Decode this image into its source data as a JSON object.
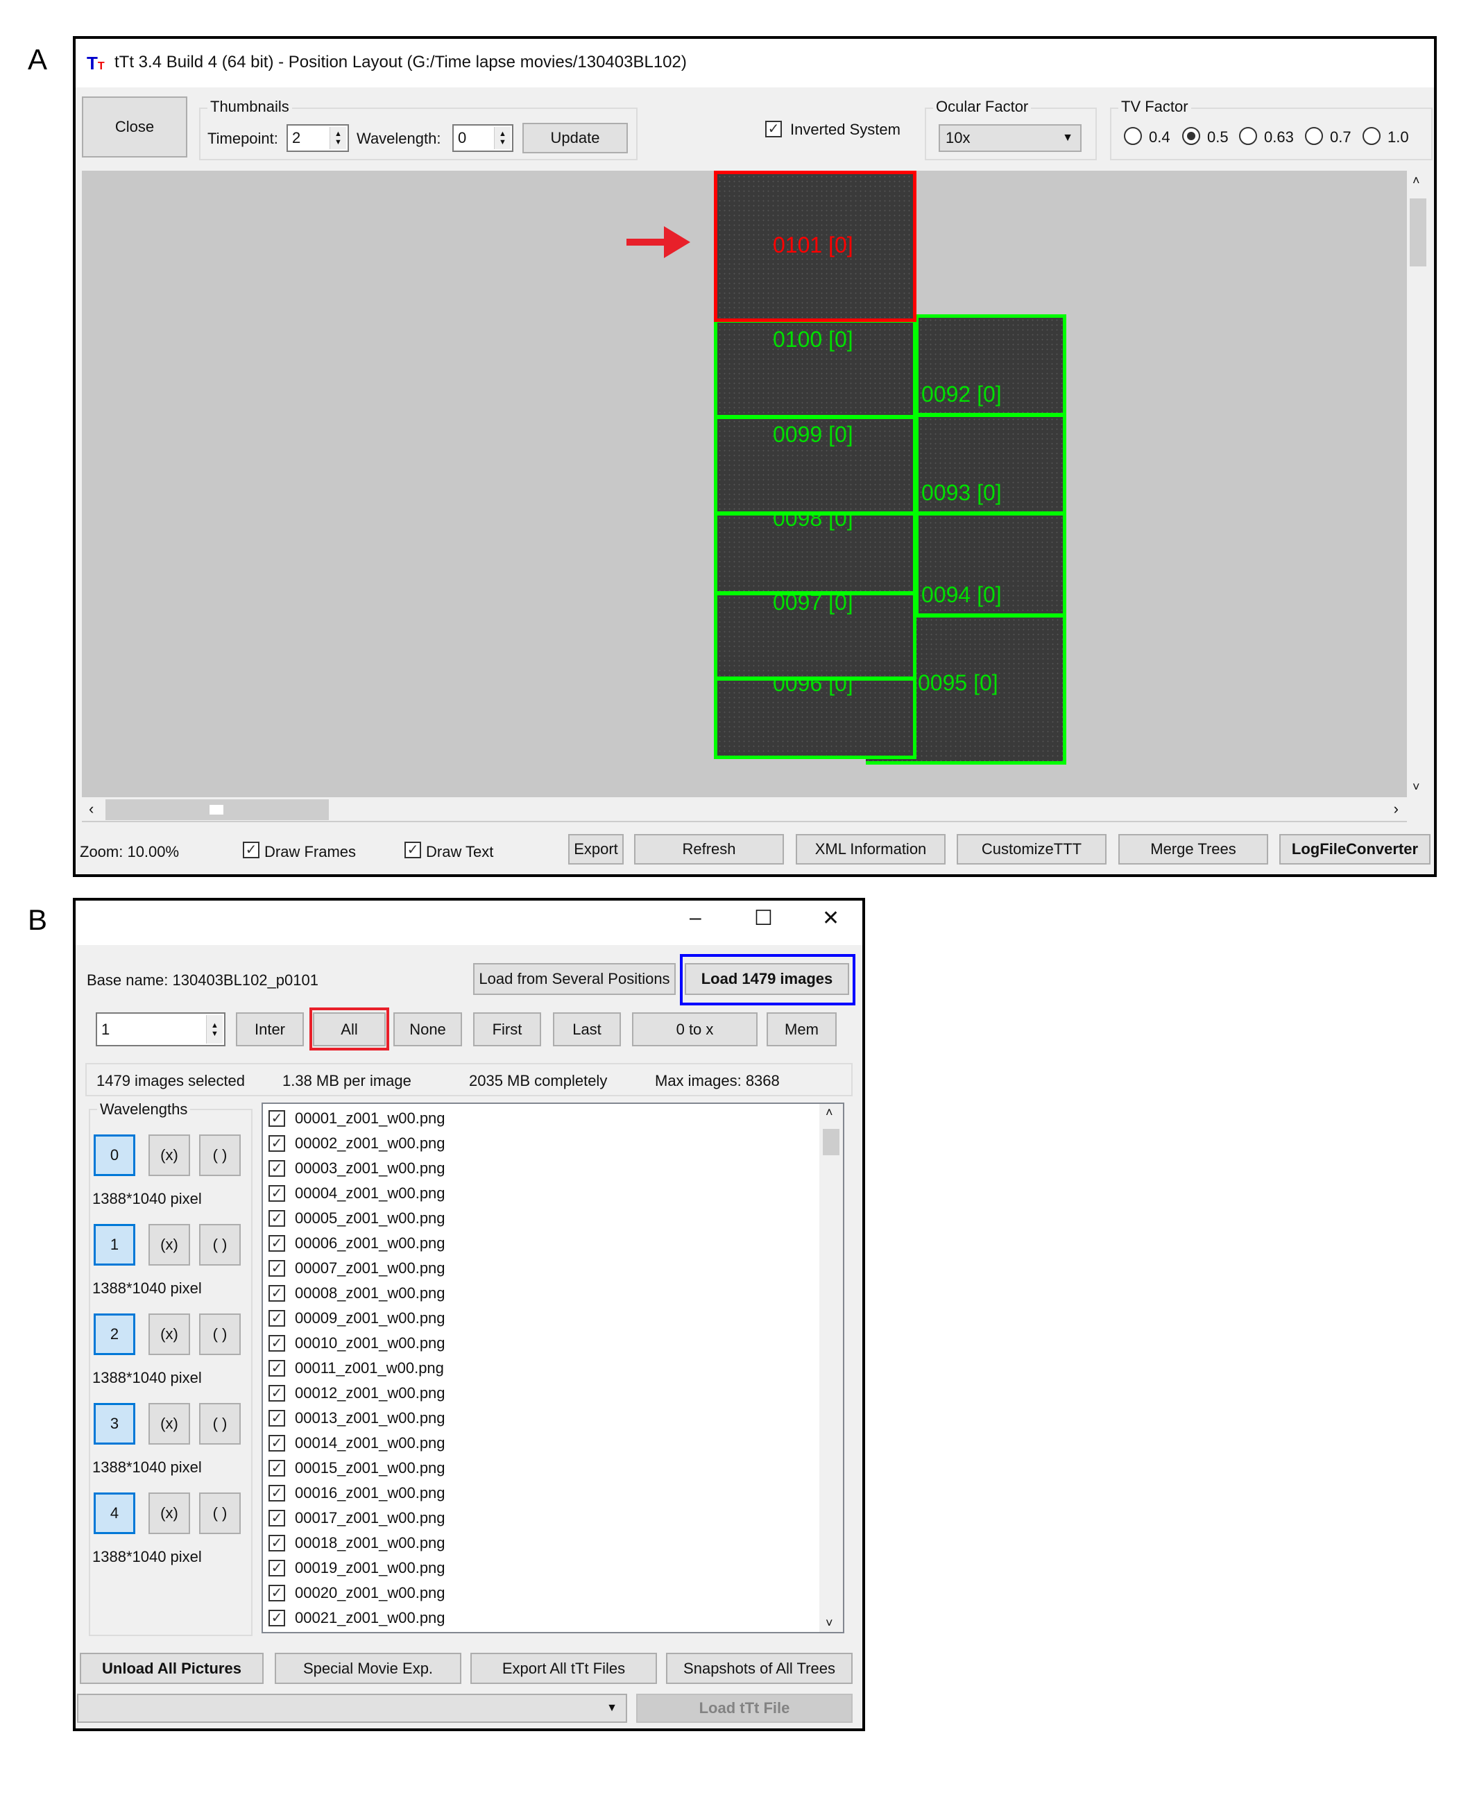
{
  "panels": {
    "a": "A",
    "b": "B"
  },
  "position_layout": {
    "title": "tTt 3.4 Build 4 (64 bit) - Position Layout (G:/Time lapse movies/130403BL102)",
    "close_label": "Close",
    "thumbnails": {
      "title": "Thumbnails",
      "timepoint_label": "Timepoint:",
      "timepoint_value": "2",
      "wavelength_label": "Wavelength:",
      "wavelength_value": "0",
      "update_label": "Update"
    },
    "inverted_system": {
      "label": "Inverted System",
      "checked": true
    },
    "ocular_factor": {
      "title": "Ocular Factor",
      "value": "10x"
    },
    "tv_factor": {
      "title": "TV Factor",
      "options": [
        "0.4",
        "0.5",
        "0.63",
        "0.7",
        "1.0"
      ],
      "selected": "0.5"
    },
    "tiles": [
      {
        "label": "0101 [0]",
        "color": "#ff0000",
        "selected": true
      },
      {
        "label": "0100 [0]",
        "color": "#00e000"
      },
      {
        "label": "0099 [0]",
        "color": "#00e000"
      },
      {
        "label": "0098 [0]",
        "color": "#00e000"
      },
      {
        "label": "0097 [0]",
        "color": "#00e000"
      },
      {
        "label": "0096 [0]",
        "color": "#00e000"
      },
      {
        "label": "0092 [0]",
        "color": "#00e000"
      },
      {
        "label": "0093 [0]",
        "color": "#00e000"
      },
      {
        "label": "0094 [0]",
        "color": "#00e000"
      },
      {
        "label": "0095 [0]",
        "color": "#00e000"
      }
    ],
    "zoom_text": "Zoom: 10.00%",
    "draw_frames": {
      "label": "Draw Frames",
      "checked": true
    },
    "draw_text": {
      "label": "Draw Text",
      "checked": true
    },
    "buttons": {
      "export": "Export",
      "refresh": "Refresh",
      "xml": "XML Information",
      "customize": "CustomizeTTT",
      "merge": "Merge Trees",
      "logfile": "LogFileConverter"
    }
  },
  "loader": {
    "base_name": "Base name: 130403BL102_p0101",
    "load_several": "Load from Several Positions",
    "load_images": "Load 1479 images",
    "spin_value": "1",
    "select_buttons": [
      "Inter",
      "All",
      "None",
      "First",
      "Last",
      "0 to x",
      "Mem"
    ],
    "info": {
      "selected": "1479 images selected",
      "per_image": "1.38 MB per image",
      "total": "2035 MB completely",
      "max": "Max images: 8368"
    },
    "wavelengths_title": "Wavelengths",
    "wavelengths": [
      {
        "id": "0",
        "x": "(x)",
        "p": "( )",
        "size": "1388*1040 pixel"
      },
      {
        "id": "1",
        "x": "(x)",
        "p": "( )",
        "size": "1388*1040 pixel"
      },
      {
        "id": "2",
        "x": "(x)",
        "p": "( )",
        "size": "1388*1040 pixel"
      },
      {
        "id": "3",
        "x": "(x)",
        "p": "( )",
        "size": "1388*1040 pixel"
      },
      {
        "id": "4",
        "x": "(x)",
        "p": "( )",
        "size": "1388*1040 pixel"
      }
    ],
    "files": [
      "00001_z001_w00.png",
      "00002_z001_w00.png",
      "00003_z001_w00.png",
      "00004_z001_w00.png",
      "00005_z001_w00.png",
      "00006_z001_w00.png",
      "00007_z001_w00.png",
      "00008_z001_w00.png",
      "00009_z001_w00.png",
      "00010_z001_w00.png",
      "00011_z001_w00.png",
      "00012_z001_w00.png",
      "00013_z001_w00.png",
      "00014_z001_w00.png",
      "00015_z001_w00.png",
      "00016_z001_w00.png",
      "00017_z001_w00.png",
      "00018_z001_w00.png",
      "00019_z001_w00.png",
      "00020_z001_w00.png",
      "00021_z001_w00.png"
    ],
    "bottom_buttons": {
      "unload": "Unload All Pictures",
      "special": "Special Movie Exp.",
      "export_all": "Export All tTt Files",
      "snapshots": "Snapshots of All Trees"
    },
    "combo_value": "",
    "load_ttt": "Load tTt File",
    "window_controls": {
      "minimize": "–",
      "maximize": "☐",
      "close": "✕"
    }
  },
  "highlight_colors": {
    "red_box": "#e8202a",
    "blue_box": "#0000ff",
    "arrow": "#e8202a"
  }
}
